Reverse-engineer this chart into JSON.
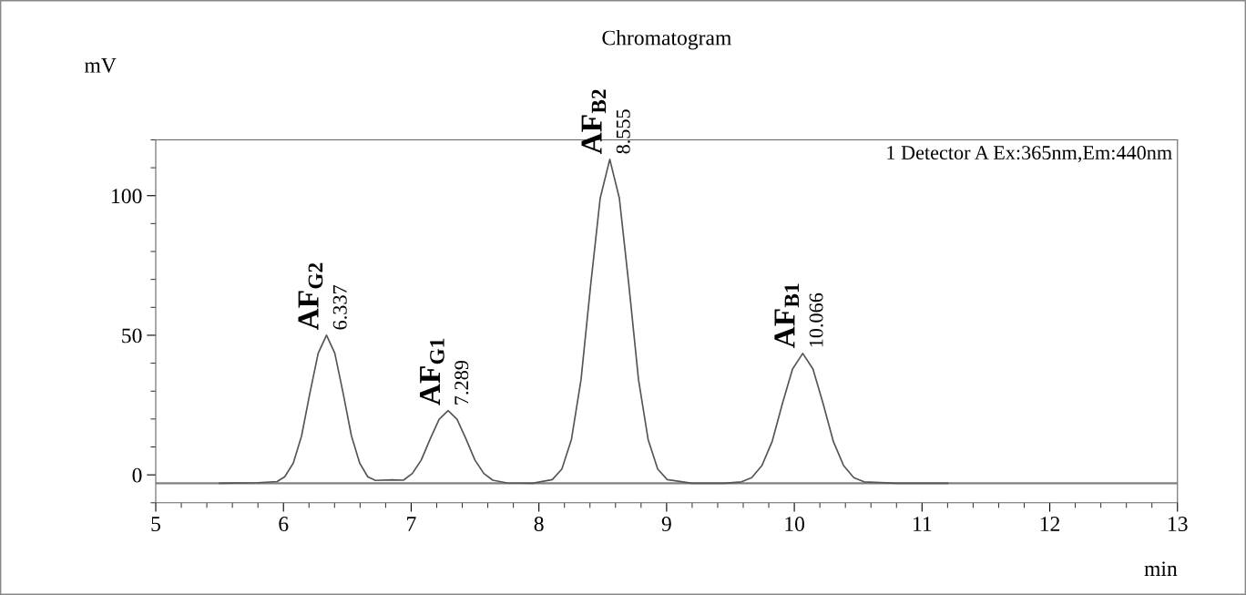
{
  "chart_data": {
    "type": "line",
    "title": "Chromatogram",
    "xlabel": "min",
    "ylabel": "mV",
    "xlim": [
      5,
      13
    ],
    "ylim": [
      -10,
      120
    ],
    "xticks": [
      5,
      6,
      7,
      8,
      9,
      10,
      11,
      12,
      13
    ],
    "yticks": [
      0,
      50,
      100
    ],
    "grid": false,
    "legend": false,
    "marker": "none",
    "line_style": "solid",
    "ref_lines": [
      {
        "axis": "y",
        "value": -3,
        "color": "#808080"
      }
    ],
    "series": [
      {
        "color": "#555555",
        "x": [
          5.5,
          5.8,
          5.95,
          6.01,
          6.077,
          6.142,
          6.207,
          6.272,
          6.337,
          6.402,
          6.467,
          6.532,
          6.597,
          6.66,
          6.72,
          6.85,
          6.939,
          7.009,
          7.079,
          7.149,
          7.219,
          7.289,
          7.359,
          7.429,
          7.499,
          7.569,
          7.639,
          7.75,
          7.95,
          8.105,
          8.18,
          8.255,
          8.33,
          8.405,
          8.48,
          8.555,
          8.63,
          8.705,
          8.78,
          8.855,
          8.93,
          9.005,
          9.2,
          9.45,
          9.586,
          9.666,
          9.746,
          9.826,
          9.906,
          9.986,
          10.066,
          10.146,
          10.226,
          10.306,
          10.386,
          10.466,
          10.546,
          10.8,
          11.2
        ],
        "values": [
          -3,
          -2.8,
          -2.4,
          -0.7,
          4.2,
          14,
          29.3,
          43.6,
          50,
          43.6,
          29.3,
          14,
          4.2,
          -0.7,
          -2,
          -1.8,
          -1.9,
          0.5,
          5.3,
          12.9,
          19.9,
          23,
          19.9,
          12.9,
          5.3,
          0.5,
          -1.9,
          -2.9,
          -3,
          -1.7,
          2.1,
          12.7,
          34.1,
          67.8,
          99.1,
          113,
          99.1,
          67.8,
          34.1,
          12.7,
          2.1,
          -1.7,
          -3,
          -3,
          -2.5,
          -1,
          3.3,
          11.9,
          25.4,
          37.9,
          43.5,
          37.9,
          25.4,
          11.9,
          3.3,
          -1,
          -2.5,
          -3,
          -3
        ]
      }
    ],
    "annotations": [
      {
        "text": "AF$_{G2}$",
        "x": 6.337,
        "y": 50
      },
      {
        "text": "6.337",
        "x": 6.337,
        "y": 50
      },
      {
        "text": "AF$_{G1}$",
        "x": 7.289,
        "y": 23
      },
      {
        "text": "7.289",
        "x": 7.289,
        "y": 23
      },
      {
        "text": "AF$_{B2}$",
        "x": 8.555,
        "y": 113
      },
      {
        "text": "8.555",
        "x": 8.555,
        "y": 113
      },
      {
        "text": "AF$_{B1}$",
        "x": 10.066,
        "y": 43.5
      },
      {
        "text": "10.066",
        "x": 10.066,
        "y": 43.5
      },
      "1 Detector A Ex:365nm,Em:440nm"
    ]
  }
}
